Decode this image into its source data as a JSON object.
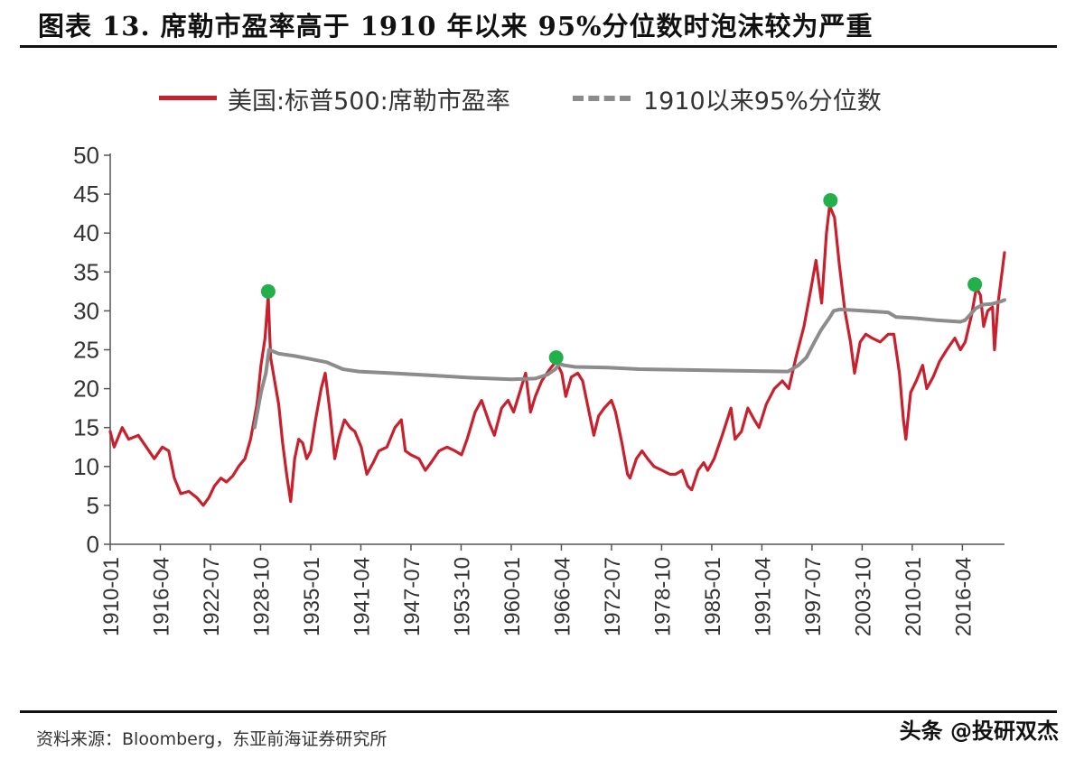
{
  "title": "图表 13. 席勒市盈率高于 1910 年以来 95%分位数时泡沫较为严重",
  "source": "资料来源：Bloomberg，东亚前海证券研究所",
  "watermark": "头条 @投研双杰",
  "colors": {
    "pe": "#c8202c",
    "p95": "#8c8c8c",
    "peak": "#22b04b"
  },
  "chart_data": {
    "type": "line",
    "title": "",
    "xlabel": "",
    "ylabel": "",
    "ylim": [
      0,
      50
    ],
    "yticks": [
      0,
      5,
      10,
      15,
      20,
      25,
      30,
      35,
      40,
      45,
      50
    ],
    "xlim": [
      1910.0,
      2021.5
    ],
    "xticks": [
      {
        "label": "1910-01",
        "x": 1910.0
      },
      {
        "label": "1916-04",
        "x": 1916.25
      },
      {
        "label": "1922-07",
        "x": 1922.5
      },
      {
        "label": "1928-10",
        "x": 1928.75
      },
      {
        "label": "1935-01",
        "x": 1935.0
      },
      {
        "label": "1941-04",
        "x": 1941.25
      },
      {
        "label": "1947-07",
        "x": 1947.5
      },
      {
        "label": "1953-10",
        "x": 1953.75
      },
      {
        "label": "1960-01",
        "x": 1960.0
      },
      {
        "label": "1966-04",
        "x": 1966.25
      },
      {
        "label": "1972-07",
        "x": 1972.5
      },
      {
        "label": "1978-10",
        "x": 1978.75
      },
      {
        "label": "1985-01",
        "x": 1985.0
      },
      {
        "label": "1991-04",
        "x": 1991.25
      },
      {
        "label": "1997-07",
        "x": 1997.5
      },
      {
        "label": "2003-10",
        "x": 2003.75
      },
      {
        "label": "2010-01",
        "x": 2010.0
      },
      {
        "label": "2016-04",
        "x": 2016.25
      }
    ],
    "grid": false,
    "legend_placement": "top",
    "series": [
      {
        "name": "美国:标普500:席勒市盈率",
        "points": [
          [
            1910.0,
            14.5
          ],
          [
            1910.5,
            12.5
          ],
          [
            1911.5,
            15.0
          ],
          [
            1912.3,
            13.5
          ],
          [
            1913.5,
            14.0
          ],
          [
            1914.5,
            12.5
          ],
          [
            1915.5,
            11.0
          ],
          [
            1916.5,
            12.5
          ],
          [
            1917.3,
            12.0
          ],
          [
            1918.0,
            8.5
          ],
          [
            1918.8,
            6.5
          ],
          [
            1919.8,
            6.8
          ],
          [
            1920.8,
            6.0
          ],
          [
            1921.6,
            5.0
          ],
          [
            1922.3,
            6.0
          ],
          [
            1923.0,
            7.5
          ],
          [
            1923.8,
            8.5
          ],
          [
            1924.5,
            8.0
          ],
          [
            1925.3,
            8.8
          ],
          [
            1926.0,
            10.0
          ],
          [
            1926.8,
            11.0
          ],
          [
            1927.5,
            13.5
          ],
          [
            1928.3,
            18.0
          ],
          [
            1928.8,
            23.0
          ],
          [
            1929.3,
            26.5
          ],
          [
            1929.7,
            32.0
          ],
          [
            1930.0,
            24.0
          ],
          [
            1930.5,
            21.0
          ],
          [
            1931.0,
            18.0
          ],
          [
            1931.5,
            13.0
          ],
          [
            1932.0,
            9.0
          ],
          [
            1932.5,
            5.5
          ],
          [
            1933.0,
            11.0
          ],
          [
            1933.5,
            13.5
          ],
          [
            1934.0,
            13.0
          ],
          [
            1934.5,
            11.0
          ],
          [
            1935.0,
            12.0
          ],
          [
            1935.6,
            16.0
          ],
          [
            1936.3,
            20.0
          ],
          [
            1936.8,
            22.0
          ],
          [
            1937.4,
            17.0
          ],
          [
            1938.0,
            11.0
          ],
          [
            1938.5,
            13.5
          ],
          [
            1939.2,
            16.0
          ],
          [
            1939.9,
            15.0
          ],
          [
            1940.5,
            14.5
          ],
          [
            1941.3,
            12.5
          ],
          [
            1942.0,
            9.0
          ],
          [
            1942.8,
            10.5
          ],
          [
            1943.5,
            12.0
          ],
          [
            1944.5,
            12.5
          ],
          [
            1945.5,
            15.0
          ],
          [
            1946.3,
            16.0
          ],
          [
            1946.8,
            12.0
          ],
          [
            1947.5,
            11.5
          ],
          [
            1948.5,
            11.0
          ],
          [
            1949.3,
            9.5
          ],
          [
            1950.0,
            10.5
          ],
          [
            1951.0,
            12.0
          ],
          [
            1952.0,
            12.5
          ],
          [
            1953.0,
            12.0
          ],
          [
            1953.8,
            11.5
          ],
          [
            1954.5,
            13.5
          ],
          [
            1955.5,
            17.0
          ],
          [
            1956.3,
            18.5
          ],
          [
            1957.3,
            15.5
          ],
          [
            1957.9,
            14.0
          ],
          [
            1958.8,
            17.5
          ],
          [
            1959.6,
            18.5
          ],
          [
            1960.3,
            17.0
          ],
          [
            1961.2,
            20.0
          ],
          [
            1961.8,
            22.0
          ],
          [
            1962.4,
            17.0
          ],
          [
            1963.0,
            19.0
          ],
          [
            1963.8,
            21.0
          ],
          [
            1964.8,
            22.5
          ],
          [
            1965.6,
            23.5
          ],
          [
            1966.3,
            22.0
          ],
          [
            1966.8,
            19.0
          ],
          [
            1967.5,
            21.5
          ],
          [
            1968.3,
            22.0
          ],
          [
            1968.9,
            21.0
          ],
          [
            1969.5,
            18.0
          ],
          [
            1970.3,
            14.0
          ],
          [
            1970.9,
            16.5
          ],
          [
            1971.6,
            17.5
          ],
          [
            1972.5,
            18.5
          ],
          [
            1973.0,
            17.0
          ],
          [
            1973.8,
            13.0
          ],
          [
            1974.5,
            9.0
          ],
          [
            1974.8,
            8.5
          ],
          [
            1975.6,
            11.0
          ],
          [
            1976.3,
            12.0
          ],
          [
            1977.0,
            11.0
          ],
          [
            1977.8,
            10.0
          ],
          [
            1978.8,
            9.5
          ],
          [
            1979.8,
            9.0
          ],
          [
            1980.5,
            9.0
          ],
          [
            1981.3,
            9.5
          ],
          [
            1982.0,
            7.5
          ],
          [
            1982.5,
            7.0
          ],
          [
            1983.3,
            9.5
          ],
          [
            1984.0,
            10.5
          ],
          [
            1984.5,
            9.5
          ],
          [
            1985.3,
            11.0
          ],
          [
            1986.3,
            14.0
          ],
          [
            1987.4,
            17.5
          ],
          [
            1987.9,
            13.5
          ],
          [
            1988.7,
            14.5
          ],
          [
            1989.5,
            17.5
          ],
          [
            1990.3,
            16.0
          ],
          [
            1990.9,
            15.0
          ],
          [
            1991.8,
            18.0
          ],
          [
            1992.8,
            20.0
          ],
          [
            1993.8,
            21.0
          ],
          [
            1994.6,
            20.0
          ],
          [
            1995.5,
            24.0
          ],
          [
            1996.5,
            28.0
          ],
          [
            1997.4,
            33.0
          ],
          [
            1998.0,
            36.5
          ],
          [
            1998.7,
            31.0
          ],
          [
            1999.3,
            40.0
          ],
          [
            1999.7,
            43.5
          ],
          [
            2000.3,
            42.0
          ],
          [
            2000.9,
            36.0
          ],
          [
            2001.6,
            30.0
          ],
          [
            2002.3,
            26.0
          ],
          [
            2002.8,
            22.0
          ],
          [
            2003.5,
            26.0
          ],
          [
            2004.2,
            27.0
          ],
          [
            2005.0,
            26.5
          ],
          [
            2006.0,
            26.0
          ],
          [
            2007.0,
            27.0
          ],
          [
            2007.7,
            27.0
          ],
          [
            2008.4,
            22.0
          ],
          [
            2008.9,
            16.0
          ],
          [
            2009.2,
            13.5
          ],
          [
            2009.8,
            19.5
          ],
          [
            2010.5,
            21.0
          ],
          [
            2011.3,
            23.0
          ],
          [
            2011.8,
            20.0
          ],
          [
            2012.6,
            21.5
          ],
          [
            2013.4,
            23.5
          ],
          [
            2014.3,
            25.0
          ],
          [
            2015.3,
            26.5
          ],
          [
            2016.0,
            25.0
          ],
          [
            2016.6,
            26.0
          ],
          [
            2017.4,
            29.5
          ],
          [
            2018.0,
            33.0
          ],
          [
            2018.5,
            32.0
          ],
          [
            2018.9,
            28.0
          ],
          [
            2019.4,
            30.0
          ],
          [
            2020.0,
            30.5
          ],
          [
            2020.25,
            25.0
          ],
          [
            2020.7,
            31.0
          ],
          [
            2021.2,
            35.0
          ],
          [
            2021.5,
            37.5
          ]
        ]
      },
      {
        "name": "1910以来95%分位数",
        "points": [
          [
            1928.0,
            15.0
          ],
          [
            1928.8,
            19.5
          ],
          [
            1929.4,
            22.0
          ],
          [
            1929.8,
            25.0
          ],
          [
            1931.0,
            24.5
          ],
          [
            1933.0,
            24.2
          ],
          [
            1935.0,
            23.8
          ],
          [
            1937.0,
            23.4
          ],
          [
            1939.0,
            22.5
          ],
          [
            1941.0,
            22.2
          ],
          [
            1945.0,
            22.0
          ],
          [
            1950.0,
            21.7
          ],
          [
            1955.0,
            21.4
          ],
          [
            1960.0,
            21.2
          ],
          [
            1963.0,
            21.3
          ],
          [
            1964.5,
            21.8
          ],
          [
            1965.5,
            22.5
          ],
          [
            1966.0,
            23.2
          ],
          [
            1966.6,
            23.0
          ],
          [
            1968.0,
            22.8
          ],
          [
            1972.0,
            22.7
          ],
          [
            1976.0,
            22.5
          ],
          [
            1982.0,
            22.4
          ],
          [
            1988.0,
            22.3
          ],
          [
            1994.5,
            22.2
          ],
          [
            1995.8,
            23.0
          ],
          [
            1996.8,
            24.0
          ],
          [
            1997.8,
            26.0
          ],
          [
            1998.6,
            27.5
          ],
          [
            1999.6,
            29.0
          ],
          [
            2000.2,
            30.0
          ],
          [
            2001.0,
            30.2
          ],
          [
            2004.0,
            30.0
          ],
          [
            2007.0,
            29.8
          ],
          [
            2008.0,
            29.2
          ],
          [
            2010.0,
            29.1
          ],
          [
            2013.0,
            28.8
          ],
          [
            2016.0,
            28.6
          ],
          [
            2016.6,
            28.8
          ],
          [
            2017.3,
            29.6
          ],
          [
            2017.9,
            30.3
          ],
          [
            2018.8,
            30.8
          ],
          [
            2020.0,
            30.9
          ],
          [
            2021.0,
            31.2
          ],
          [
            2021.5,
            31.4
          ]
        ]
      }
    ],
    "highlight_points": [
      [
        1929.7,
        32.5
      ],
      [
        1965.6,
        24.0
      ],
      [
        1999.8,
        44.2
      ],
      [
        2017.8,
        33.4
      ]
    ]
  }
}
